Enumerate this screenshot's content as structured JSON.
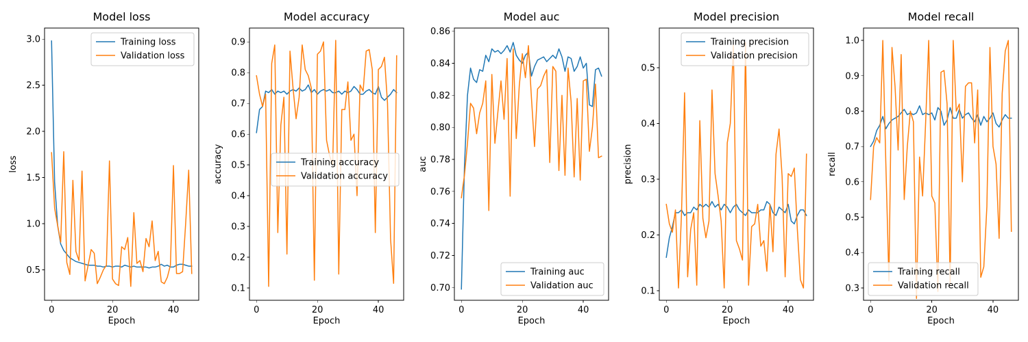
{
  "chart_data": [
    {
      "type": "line",
      "title": "Model loss",
      "xlabel": "Epoch",
      "ylabel": "loss",
      "xlim": [
        -2.3,
        48.3
      ],
      "ylim": [
        0.17,
        3.12
      ],
      "xticks": [
        0,
        20,
        40
      ],
      "yticks": [
        0.5,
        1.0,
        1.5,
        2.0,
        2.5,
        3.0
      ],
      "ytick_labels": [
        "0.5",
        "1.0",
        "1.5",
        "2.0",
        "2.5",
        "3.0"
      ],
      "legend_position": "upper right",
      "series": [
        {
          "name": "Training loss",
          "color": "#1f77b4",
          "values": [
            2.98,
            1.45,
            0.98,
            0.78,
            0.71,
            0.67,
            0.63,
            0.61,
            0.59,
            0.58,
            0.57,
            0.56,
            0.55,
            0.55,
            0.55,
            0.54,
            0.54,
            0.53,
            0.54,
            0.54,
            0.53,
            0.54,
            0.54,
            0.53,
            0.55,
            0.54,
            0.53,
            0.54,
            0.53,
            0.53,
            0.53,
            0.53,
            0.52,
            0.53,
            0.53,
            0.54,
            0.56,
            0.54,
            0.55,
            0.53,
            0.53,
            0.55,
            0.56,
            0.56,
            0.55,
            0.54,
            0.54
          ]
        },
        {
          "name": "Validation loss",
          "color": "#ff7f0e",
          "values": [
            1.77,
            1.17,
            0.98,
            0.8,
            1.78,
            0.58,
            0.45,
            1.47,
            0.7,
            0.6,
            1.57,
            0.38,
            0.55,
            0.72,
            0.68,
            0.35,
            0.42,
            0.5,
            0.55,
            1.68,
            0.4,
            0.35,
            0.33,
            0.75,
            0.72,
            0.85,
            0.32,
            1.12,
            0.57,
            0.6,
            0.48,
            0.84,
            0.75,
            1.03,
            0.6,
            0.7,
            0.37,
            0.35,
            0.42,
            0.55,
            1.63,
            0.46,
            0.46,
            0.48,
            1.0,
            1.58,
            0.46
          ]
        }
      ]
    },
    {
      "type": "line",
      "title": "Model accuracy",
      "xlabel": "Epoch",
      "ylabel": "accuracy",
      "xlim": [
        -2.3,
        48.3
      ],
      "ylim": [
        0.06,
        0.945
      ],
      "xticks": [
        0,
        20,
        40
      ],
      "yticks": [
        0.1,
        0.2,
        0.3,
        0.4,
        0.5,
        0.6,
        0.7,
        0.8,
        0.9
      ],
      "ytick_labels": [
        "0.1",
        "0.2",
        "0.3",
        "0.4",
        "0.5",
        "0.6",
        "0.7",
        "0.8",
        "0.9"
      ],
      "legend_position": "center right",
      "series": [
        {
          "name": "Training accuracy",
          "color": "#1f77b4",
          "values": [
            0.605,
            0.68,
            0.69,
            0.74,
            0.735,
            0.745,
            0.73,
            0.74,
            0.735,
            0.74,
            0.73,
            0.74,
            0.745,
            0.74,
            0.75,
            0.74,
            0.745,
            0.76,
            0.735,
            0.745,
            0.73,
            0.74,
            0.745,
            0.74,
            0.745,
            0.735,
            0.735,
            0.74,
            0.73,
            0.74,
            0.735,
            0.74,
            0.755,
            0.745,
            0.73,
            0.73,
            0.74,
            0.745,
            0.735,
            0.73,
            0.755,
            0.72,
            0.71,
            0.72,
            0.73,
            0.745,
            0.735
          ]
        },
        {
          "name": "Validation accuracy",
          "color": "#ff7f0e",
          "values": [
            0.79,
            0.73,
            0.69,
            0.73,
            0.105,
            0.83,
            0.89,
            0.28,
            0.63,
            0.72,
            0.21,
            0.87,
            0.75,
            0.65,
            0.72,
            0.89,
            0.81,
            0.79,
            0.75,
            0.125,
            0.86,
            0.87,
            0.9,
            0.58,
            0.53,
            0.5,
            0.905,
            0.145,
            0.68,
            0.68,
            0.77,
            0.58,
            0.6,
            0.4,
            0.76,
            0.74,
            0.87,
            0.875,
            0.81,
            0.28,
            0.81,
            0.82,
            0.85,
            0.7,
            0.26,
            0.115,
            0.855
          ]
        }
      ]
    },
    {
      "type": "line",
      "title": "Model auc",
      "xlabel": "Epoch",
      "ylabel": "auc",
      "xlim": [
        -2.3,
        48.3
      ],
      "ylim": [
        0.692,
        0.862
      ],
      "xticks": [
        0,
        20,
        40
      ],
      "yticks": [
        0.7,
        0.72,
        0.74,
        0.76,
        0.78,
        0.8,
        0.82,
        0.84,
        0.86
      ],
      "ytick_labels": [
        "0.70",
        "0.72",
        "0.74",
        "0.76",
        "0.78",
        "0.80",
        "0.82",
        "0.84",
        "0.86"
      ],
      "legend_position": "lower right",
      "series": [
        {
          "name": "Training auc",
          "color": "#1f77b4",
          "values": [
            0.699,
            0.775,
            0.82,
            0.837,
            0.83,
            0.828,
            0.836,
            0.835,
            0.845,
            0.841,
            0.849,
            0.847,
            0.848,
            0.846,
            0.848,
            0.851,
            0.847,
            0.853,
            0.845,
            0.842,
            0.84,
            0.845,
            0.847,
            0.832,
            0.838,
            0.842,
            0.843,
            0.844,
            0.841,
            0.843,
            0.845,
            0.843,
            0.849,
            0.844,
            0.835,
            0.844,
            0.843,
            0.835,
            0.838,
            0.844,
            0.837,
            0.84,
            0.814,
            0.813,
            0.836,
            0.837,
            0.832
          ]
        },
        {
          "name": "Validation auc",
          "color": "#ff7f0e",
          "values": [
            0.756,
            0.77,
            0.79,
            0.815,
            0.812,
            0.796,
            0.809,
            0.815,
            0.829,
            0.748,
            0.833,
            0.79,
            0.81,
            0.829,
            0.805,
            0.843,
            0.757,
            0.849,
            0.793,
            0.826,
            0.846,
            0.831,
            0.851,
            0.818,
            0.788,
            0.824,
            0.826,
            0.832,
            0.836,
            0.778,
            0.838,
            0.835,
            0.773,
            0.82,
            0.77,
            0.837,
            0.816,
            0.769,
            0.818,
            0.767,
            0.829,
            0.83,
            0.785,
            0.8,
            0.827,
            0.781,
            0.782
          ]
        }
      ]
    },
    {
      "type": "line",
      "title": "Model precision",
      "xlabel": "Epoch",
      "ylabel": "precision",
      "xlim": [
        -2.3,
        48.3
      ],
      "ylim": [
        0.083,
        0.571
      ],
      "xticks": [
        0,
        20,
        40
      ],
      "yticks": [
        0.1,
        0.2,
        0.3,
        0.4,
        0.5
      ],
      "ytick_labels": [
        "0.1",
        "0.2",
        "0.3",
        "0.4",
        "0.5"
      ],
      "legend_position": "upper right",
      "series": [
        {
          "name": "Training precision",
          "color": "#1f77b4",
          "values": [
            0.16,
            0.195,
            0.215,
            0.24,
            0.24,
            0.245,
            0.235,
            0.24,
            0.24,
            0.25,
            0.245,
            0.255,
            0.25,
            0.255,
            0.25,
            0.26,
            0.25,
            0.255,
            0.245,
            0.255,
            0.25,
            0.24,
            0.25,
            0.255,
            0.245,
            0.24,
            0.235,
            0.245,
            0.24,
            0.24,
            0.24,
            0.245,
            0.245,
            0.26,
            0.255,
            0.24,
            0.235,
            0.25,
            0.245,
            0.24,
            0.255,
            0.225,
            0.22,
            0.235,
            0.245,
            0.245,
            0.235
          ]
        },
        {
          "name": "Validation precision",
          "color": "#ff7f0e",
          "values": [
            0.255,
            0.22,
            0.205,
            0.245,
            0.105,
            0.24,
            0.455,
            0.125,
            0.21,
            0.24,
            0.11,
            0.405,
            0.23,
            0.195,
            0.225,
            0.46,
            0.31,
            0.27,
            0.225,
            0.105,
            0.365,
            0.4,
            0.54,
            0.19,
            0.175,
            0.155,
            0.545,
            0.11,
            0.215,
            0.22,
            0.255,
            0.18,
            0.19,
            0.135,
            0.255,
            0.17,
            0.345,
            0.39,
            0.305,
            0.125,
            0.31,
            0.305,
            0.32,
            0.21,
            0.12,
            0.105,
            0.345
          ]
        }
      ]
    },
    {
      "type": "line",
      "title": "Model recall",
      "xlabel": "Epoch",
      "ylabel": "recall",
      "xlim": [
        -2.3,
        48.3
      ],
      "ylim": [
        0.265,
        1.035
      ],
      "xticks": [
        0,
        20,
        40
      ],
      "yticks": [
        0.3,
        0.4,
        0.5,
        0.6,
        0.7,
        0.8,
        0.9,
        1.0
      ],
      "ytick_labels": [
        "0.3",
        "0.4",
        "0.5",
        "0.6",
        "0.7",
        "0.8",
        "0.9",
        "1.0"
      ],
      "legend_position": "lower left",
      "series": [
        {
          "name": "Training recall",
          "color": "#1f77b4",
          "values": [
            0.7,
            0.715,
            0.745,
            0.76,
            0.785,
            0.75,
            0.765,
            0.775,
            0.78,
            0.785,
            0.795,
            0.805,
            0.79,
            0.795,
            0.79,
            0.795,
            0.815,
            0.79,
            0.795,
            0.79,
            0.795,
            0.775,
            0.81,
            0.8,
            0.76,
            0.775,
            0.81,
            0.78,
            0.78,
            0.805,
            0.78,
            0.79,
            0.795,
            0.78,
            0.77,
            0.79,
            0.76,
            0.785,
            0.77,
            0.78,
            0.795,
            0.765,
            0.755,
            0.775,
            0.79,
            0.78,
            0.78
          ]
        },
        {
          "name": "Validation recall",
          "color": "#ff7f0e",
          "values": [
            0.55,
            0.7,
            0.725,
            0.71,
            1.0,
            0.65,
            0.32,
            0.98,
            0.87,
            0.69,
            0.96,
            0.55,
            0.7,
            0.8,
            0.77,
            0.27,
            0.67,
            0.56,
            0.77,
            1.0,
            0.56,
            0.54,
            0.29,
            0.91,
            0.915,
            0.82,
            0.31,
            1.0,
            0.8,
            0.82,
            0.6,
            0.87,
            0.88,
            0.88,
            0.71,
            0.86,
            0.33,
            0.36,
            0.53,
            0.98,
            0.7,
            0.65,
            0.44,
            0.85,
            0.97,
            1.0,
            0.46
          ]
        }
      ]
    }
  ]
}
